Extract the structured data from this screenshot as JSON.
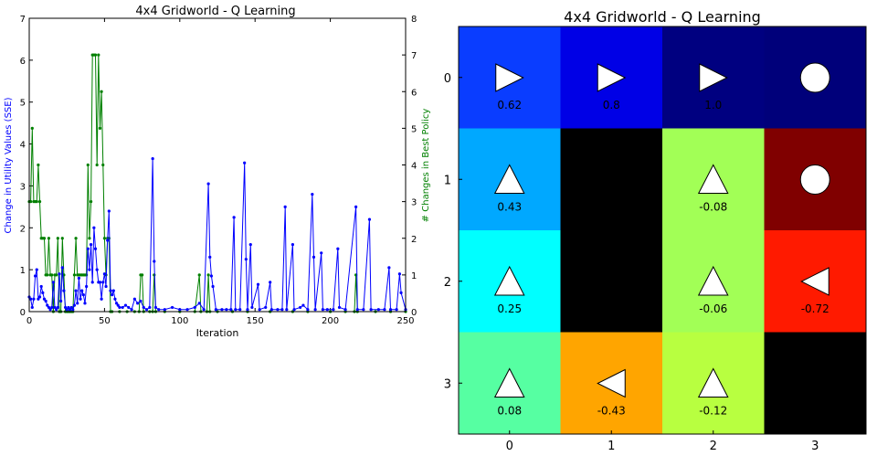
{
  "chart_data": [
    {
      "type": "line",
      "title": "4x4 Gridworld - Q Learning",
      "xlabel": "Iteration",
      "ylabel_left": "Change in Utility Values (SSE)",
      "ylabel_right": "# Changes in Best Policy",
      "xlim": [
        0,
        250
      ],
      "ylim_left": [
        0,
        7
      ],
      "ylim_right": [
        0,
        8
      ],
      "x_ticks": [
        0,
        50,
        100,
        150,
        200,
        250
      ],
      "y_ticks_left": [
        0,
        1,
        2,
        3,
        4,
        5,
        6,
        7
      ],
      "y_ticks_right": [
        0,
        1,
        2,
        3,
        4,
        5,
        6,
        7,
        8
      ],
      "colors": {
        "left": "#0000ff",
        "right": "#008000"
      },
      "series": [
        {
          "axis": "left",
          "points": [
            [
              0,
              0.35
            ],
            [
              1,
              0.3
            ],
            [
              2,
              0.1
            ],
            [
              3,
              0.3
            ],
            [
              4,
              0.85
            ],
            [
              5,
              1.0
            ],
            [
              6,
              0.3
            ],
            [
              7,
              0.35
            ],
            [
              8,
              0.6
            ],
            [
              9,
              0.45
            ],
            [
              10,
              0.3
            ],
            [
              11,
              0.25
            ],
            [
              12,
              0.15
            ],
            [
              13,
              0.1
            ],
            [
              14,
              0.05
            ],
            [
              15,
              0.1
            ],
            [
              16,
              0.7
            ],
            [
              17,
              0.1
            ],
            [
              18,
              0.05
            ],
            [
              19,
              0.1
            ],
            [
              20,
              0.9
            ],
            [
              21,
              0.25
            ],
            [
              22,
              1.05
            ],
            [
              23,
              0.5
            ],
            [
              24,
              0.1
            ],
            [
              25,
              0.05
            ],
            [
              26,
              0.1
            ],
            [
              27,
              0.05
            ],
            [
              28,
              0.1
            ],
            [
              29,
              0.05
            ],
            [
              30,
              0.15
            ],
            [
              31,
              0.5
            ],
            [
              32,
              0.2
            ],
            [
              33,
              0.8
            ],
            [
              34,
              0.3
            ],
            [
              35,
              0.5
            ],
            [
              36,
              0.4
            ],
            [
              37,
              0.2
            ],
            [
              38,
              0.6
            ],
            [
              39,
              1.5
            ],
            [
              40,
              1.0
            ],
            [
              41,
              1.6
            ],
            [
              42,
              0.7
            ],
            [
              43,
              2.0
            ],
            [
              44,
              1.5
            ],
            [
              45,
              1.0
            ],
            [
              46,
              0.7
            ],
            [
              47,
              0.7
            ],
            [
              48,
              0.3
            ],
            [
              49,
              0.7
            ],
            [
              50,
              0.9
            ],
            [
              51,
              0.6
            ],
            [
              52,
              1.7
            ],
            [
              53,
              2.4
            ],
            [
              54,
              0.5
            ],
            [
              55,
              0.4
            ],
            [
              56,
              0.5
            ],
            [
              57,
              0.3
            ],
            [
              58,
              0.2
            ],
            [
              59,
              0.15
            ],
            [
              60,
              0.1
            ],
            [
              62,
              0.1
            ],
            [
              64,
              0.15
            ],
            [
              66,
              0.1
            ],
            [
              68,
              0.05
            ],
            [
              70,
              0.3
            ],
            [
              72,
              0.2
            ],
            [
              74,
              0.25
            ],
            [
              76,
              0.1
            ],
            [
              78,
              0.05
            ],
            [
              80,
              0.1
            ],
            [
              82,
              3.65
            ],
            [
              83,
              1.2
            ],
            [
              84,
              0.1
            ],
            [
              86,
              0.05
            ],
            [
              90,
              0.05
            ],
            [
              95,
              0.1
            ],
            [
              100,
              0.05
            ],
            [
              105,
              0.05
            ],
            [
              110,
              0.1
            ],
            [
              113,
              0.2
            ],
            [
              116,
              0.05
            ],
            [
              119,
              3.05
            ],
            [
              120,
              1.3
            ],
            [
              121,
              0.85
            ],
            [
              122,
              0.6
            ],
            [
              124,
              0.05
            ],
            [
              128,
              0.05
            ],
            [
              131,
              0.05
            ],
            [
              134,
              0.05
            ],
            [
              136,
              2.25
            ],
            [
              137,
              0.05
            ],
            [
              140,
              0.05
            ],
            [
              143,
              3.55
            ],
            [
              144,
              1.25
            ],
            [
              145,
              0.05
            ],
            [
              147,
              1.6
            ],
            [
              148,
              0.1
            ],
            [
              152,
              0.65
            ],
            [
              153,
              0.05
            ],
            [
              157,
              0.1
            ],
            [
              160,
              0.7
            ],
            [
              161,
              0.05
            ],
            [
              165,
              0.05
            ],
            [
              168,
              0.05
            ],
            [
              170,
              2.5
            ],
            [
              171,
              0.05
            ],
            [
              175,
              1.6
            ],
            [
              176,
              0.05
            ],
            [
              180,
              0.1
            ],
            [
              182,
              0.15
            ],
            [
              185,
              0.05
            ],
            [
              188,
              2.8
            ],
            [
              189,
              1.3
            ],
            [
              190,
              0.05
            ],
            [
              194,
              1.4
            ],
            [
              195,
              0.05
            ],
            [
              198,
              0.05
            ],
            [
              202,
              0.05
            ],
            [
              205,
              1.5
            ],
            [
              206,
              0.1
            ],
            [
              210,
              0.05
            ],
            [
              217,
              2.5
            ],
            [
              218,
              0.05
            ],
            [
              222,
              0.05
            ],
            [
              226,
              2.2
            ],
            [
              227,
              0.05
            ],
            [
              232,
              0.05
            ],
            [
              236,
              0.05
            ],
            [
              239,
              1.05
            ],
            [
              240,
              0.05
            ],
            [
              244,
              0.05
            ],
            [
              246,
              0.9
            ],
            [
              247,
              0.45
            ],
            [
              250,
              0.05
            ]
          ]
        },
        {
          "axis": "right",
          "points": [
            [
              0,
              3
            ],
            [
              1,
              3
            ],
            [
              2,
              5
            ],
            [
              3,
              3
            ],
            [
              4,
              3
            ],
            [
              5,
              3
            ],
            [
              6,
              4
            ],
            [
              7,
              3
            ],
            [
              8,
              2
            ],
            [
              9,
              2
            ],
            [
              10,
              2
            ],
            [
              11,
              1
            ],
            [
              12,
              1
            ],
            [
              13,
              2
            ],
            [
              14,
              1
            ],
            [
              15,
              1
            ],
            [
              16,
              0
            ],
            [
              17,
              1
            ],
            [
              18,
              1
            ],
            [
              19,
              2
            ],
            [
              20,
              0
            ],
            [
              21,
              0
            ],
            [
              22,
              2
            ],
            [
              23,
              1
            ],
            [
              24,
              0
            ],
            [
              25,
              0
            ],
            [
              26,
              0
            ],
            [
              27,
              0
            ],
            [
              28,
              0
            ],
            [
              29,
              0
            ],
            [
              30,
              1
            ],
            [
              31,
              2
            ],
            [
              32,
              1
            ],
            [
              33,
              1
            ],
            [
              34,
              1
            ],
            [
              35,
              1
            ],
            [
              36,
              1
            ],
            [
              37,
              1
            ],
            [
              38,
              1
            ],
            [
              39,
              4
            ],
            [
              40,
              2
            ],
            [
              41,
              3
            ],
            [
              42,
              7
            ],
            [
              43,
              7
            ],
            [
              44,
              7
            ],
            [
              45,
              4
            ],
            [
              46,
              7
            ],
            [
              47,
              5
            ],
            [
              48,
              6
            ],
            [
              49,
              4
            ],
            [
              50,
              2
            ],
            [
              51,
              1
            ],
            [
              52,
              2
            ],
            [
              53,
              2
            ],
            [
              54,
              0
            ],
            [
              55,
              0
            ],
            [
              60,
              0
            ],
            [
              65,
              0
            ],
            [
              70,
              0
            ],
            [
              73,
              0
            ],
            [
              74,
              1
            ],
            [
              75,
              1
            ],
            [
              76,
              0
            ],
            [
              80,
              0
            ],
            [
              82,
              0
            ],
            [
              83,
              1
            ],
            [
              84,
              0
            ],
            [
              90,
              0
            ],
            [
              100,
              0
            ],
            [
              110,
              0
            ],
            [
              113,
              1
            ],
            [
              114,
              0
            ],
            [
              118,
              0
            ],
            [
              119,
              1
            ],
            [
              120,
              0
            ],
            [
              125,
              0
            ],
            [
              135,
              0
            ],
            [
              145,
              0
            ],
            [
              160,
              0
            ],
            [
              175,
              0
            ],
            [
              185,
              0
            ],
            [
              200,
              0
            ],
            [
              210,
              0
            ],
            [
              216,
              0
            ],
            [
              217,
              1
            ],
            [
              218,
              0
            ],
            [
              230,
              0
            ],
            [
              240,
              0
            ],
            [
              250,
              0
            ]
          ]
        }
      ]
    },
    {
      "type": "heatmap",
      "title": "4x4 Gridworld - Q Learning",
      "rows": [
        0,
        1,
        2,
        3
      ],
      "cols": [
        0,
        1,
        2,
        3
      ],
      "cells": [
        [
          {
            "color": "#0a3dff",
            "symbol": "right",
            "label": "0.62"
          },
          {
            "color": "#0000e6",
            "symbol": "right",
            "label": "0.8"
          },
          {
            "color": "#000080",
            "symbol": "right",
            "label": "1.0"
          },
          {
            "color": "#00007a",
            "symbol": "circle",
            "label": ""
          }
        ],
        [
          {
            "color": "#00a8ff",
            "symbol": "up",
            "label": "0.43"
          },
          {
            "color": "#000000",
            "symbol": "none",
            "label": ""
          },
          {
            "color": "#a2ff56",
            "symbol": "up",
            "label": "-0.08"
          },
          {
            "color": "#800000",
            "symbol": "circle",
            "label": ""
          }
        ],
        [
          {
            "color": "#00ffff",
            "symbol": "up",
            "label": "0.25"
          },
          {
            "color": "#000000",
            "symbol": "none",
            "label": ""
          },
          {
            "color": "#a2ff56",
            "symbol": "up",
            "label": "-0.06"
          },
          {
            "color": "#ff1a00",
            "symbol": "left",
            "label": "-0.72"
          }
        ],
        [
          {
            "color": "#56ffa2",
            "symbol": "up",
            "label": "0.08"
          },
          {
            "color": "#ffa500",
            "symbol": "left",
            "label": "-0.43"
          },
          {
            "color": "#b8ff40",
            "symbol": "up",
            "label": "-0.12"
          },
          {
            "color": "#000000",
            "symbol": "none",
            "label": ""
          }
        ]
      ]
    }
  ]
}
